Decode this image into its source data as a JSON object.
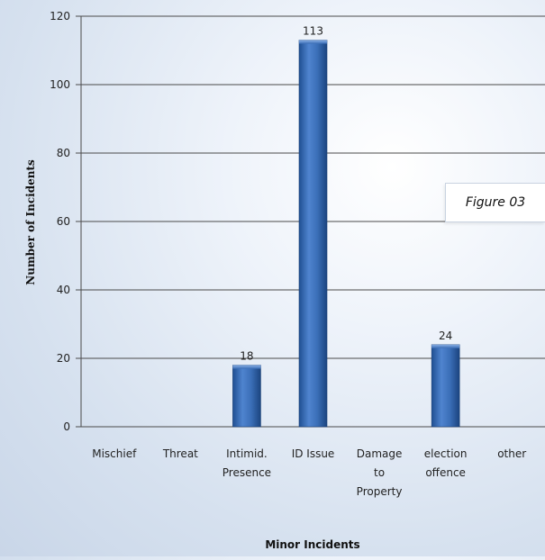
{
  "chart_data": {
    "type": "bar",
    "title": "",
    "xlabel": "Minor Incidents",
    "ylabel": "Number of Incidents",
    "categories": [
      [
        "Mischief"
      ],
      [
        "Threat"
      ],
      [
        "Intimid.",
        "Presence"
      ],
      [
        "ID Issue"
      ],
      [
        "Damage",
        "to",
        "Property"
      ],
      [
        "election",
        "offence"
      ],
      [
        "other"
      ]
    ],
    "values": [
      0,
      0,
      18,
      113,
      0,
      24,
      0
    ],
    "value_labels": [
      "",
      "",
      "18",
      "113",
      "",
      "24",
      ""
    ],
    "ylim": [
      0,
      120
    ],
    "yticks": [
      0,
      20,
      40,
      60,
      80,
      100,
      120
    ],
    "grid": true,
    "bar_color": "#2f63a8"
  },
  "annotation": {
    "figure_label": "Figure 03"
  }
}
